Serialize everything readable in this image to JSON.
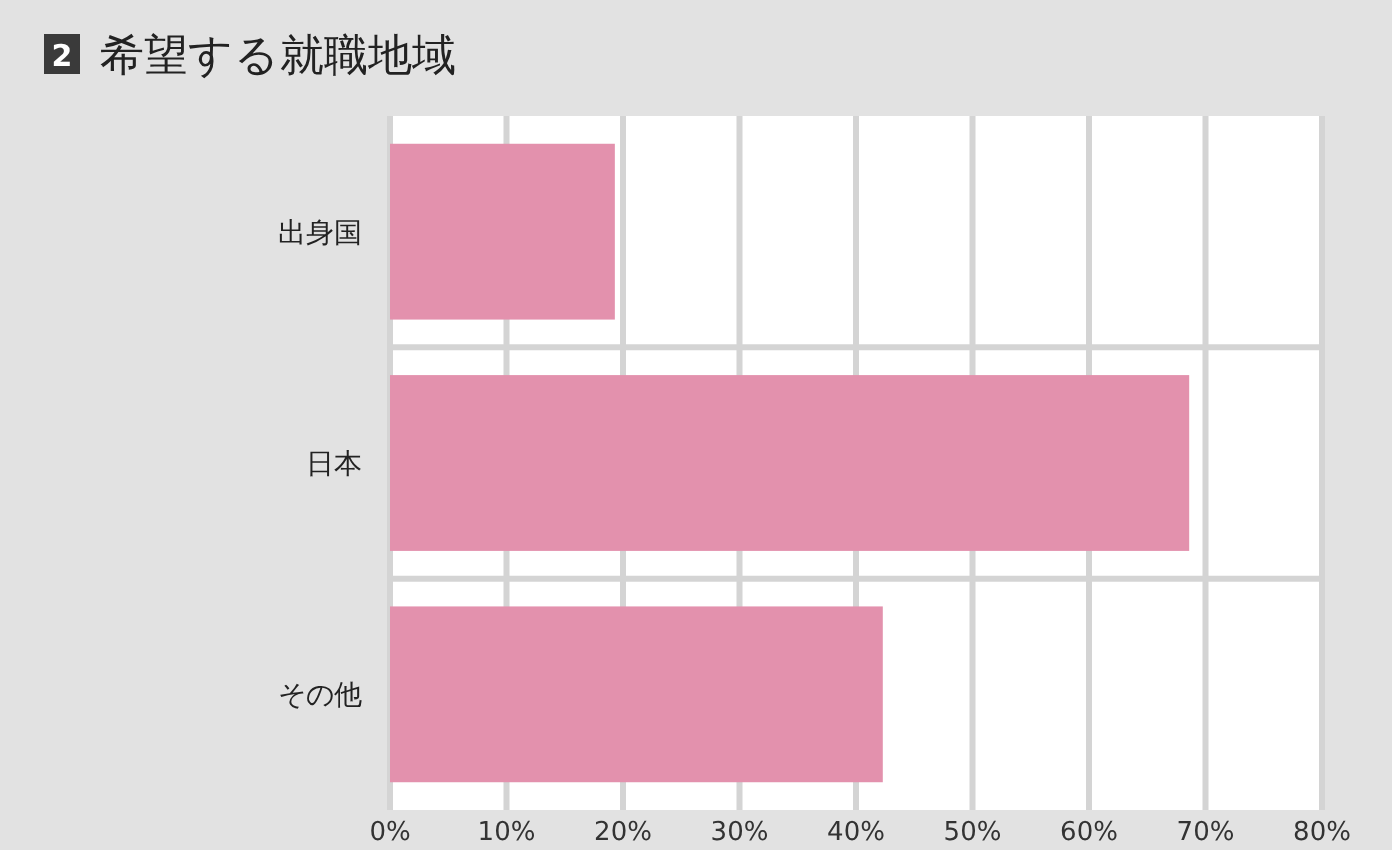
{
  "chart_data": {
    "type": "bar",
    "orientation": "horizontal",
    "title": "希望する就職地域",
    "annotations": [
      "2"
    ],
    "categories": [
      "出身国",
      "日本",
      "その他"
    ],
    "values": [
      19.3,
      68.6,
      42.3
    ],
    "color": "#e391ad",
    "xlim": [
      0,
      80
    ],
    "xticks": [
      {
        "value": 0,
        "label": "0%"
      },
      {
        "value": 10,
        "label": "10%"
      },
      {
        "value": 20,
        "label": "20%"
      },
      {
        "value": 30,
        "label": "30%"
      },
      {
        "value": 40,
        "label": "40%"
      },
      {
        "value": 50,
        "label": "50%"
      },
      {
        "value": 60,
        "label": "60%"
      },
      {
        "value": 70,
        "label": "70%"
      },
      {
        "value": 80,
        "label": "80%"
      }
    ],
    "grid": "x"
  }
}
